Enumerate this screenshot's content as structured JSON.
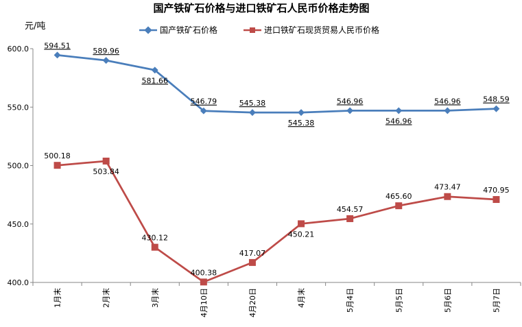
{
  "chart_data": {
    "type": "line",
    "title": "国产铁矿石价格与进口铁矿石人民币价格走势图",
    "ylabel": "元/吨",
    "xlabel": "",
    "ylim": [
      400,
      600
    ],
    "yticks": [
      "400.0",
      "450.0",
      "500.0",
      "550.0",
      "600.0"
    ],
    "categories": [
      "1月末",
      "2月末",
      "3月末",
      "4月10日",
      "4月20日",
      "4月末",
      "5月4日",
      "5月5日",
      "5月6日",
      "5月7日"
    ],
    "grid": false,
    "legend_position": "top",
    "series": [
      {
        "name": "国产铁矿石价格",
        "color": "#4a7ebb",
        "marker": "diamond",
        "values": [
          594.51,
          589.96,
          581.66,
          546.79,
          545.38,
          545.38,
          546.96,
          546.96,
          546.96,
          548.59
        ],
        "labels": [
          "594.51",
          "589.96",
          "581.66",
          "546.79",
          "545.38",
          "545.38",
          "546.96",
          "546.96",
          "546.96",
          "548.59"
        ],
        "label_pos": [
          "above",
          "above",
          "below",
          "above",
          "above",
          "below",
          "above",
          "below",
          "above",
          "above"
        ],
        "label_underline": true
      },
      {
        "name": "进口铁矿石现货贸易人民币价格",
        "color": "#be4b48",
        "marker": "square",
        "values": [
          500.18,
          503.84,
          430.12,
          400.38,
          417.07,
          450.21,
          454.57,
          465.6,
          473.47,
          470.95
        ],
        "labels": [
          "500.18",
          "503.84",
          "430.12",
          "400.38",
          "417.07",
          "450.21",
          "454.57",
          "465.60",
          "473.47",
          "470.95"
        ],
        "label_pos": [
          "above",
          "below",
          "above",
          "above",
          "above",
          "below",
          "above",
          "above",
          "above",
          "above"
        ],
        "label_underline": false
      }
    ]
  }
}
